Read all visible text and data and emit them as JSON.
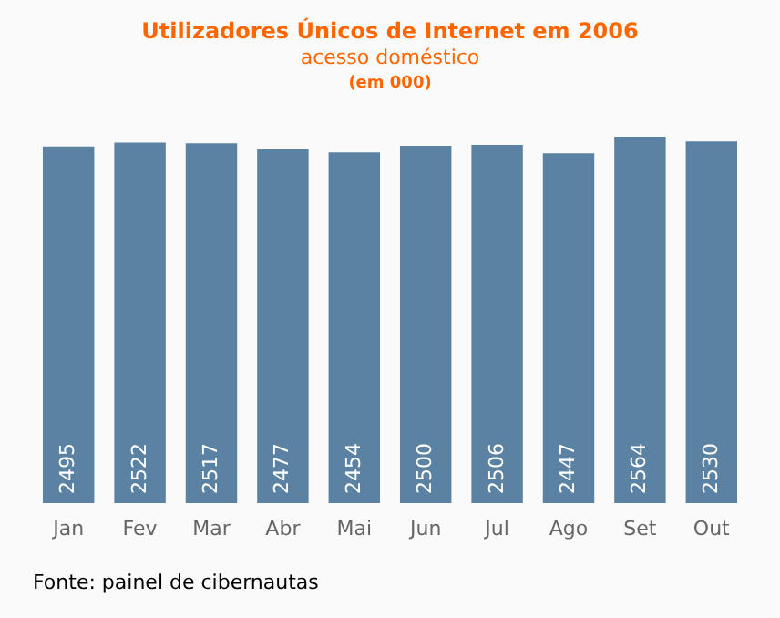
{
  "chart_data": {
    "type": "bar",
    "title": "Utilizadores Únicos de Internet em 2006",
    "subtitle": "acesso doméstico",
    "annotations": [
      "(em 000)",
      "Fonte: painel de cibernautas"
    ],
    "categories": [
      "Jan",
      "Fev",
      "Mar",
      "Abr",
      "Mai",
      "Jun",
      "Jul",
      "Ago",
      "Set",
      "Out"
    ],
    "values": [
      2495,
      2522,
      2517,
      2477,
      2454,
      2500,
      2506,
      2447,
      2564,
      2530
    ],
    "color": "#5b82a3",
    "data_labels": true
  }
}
